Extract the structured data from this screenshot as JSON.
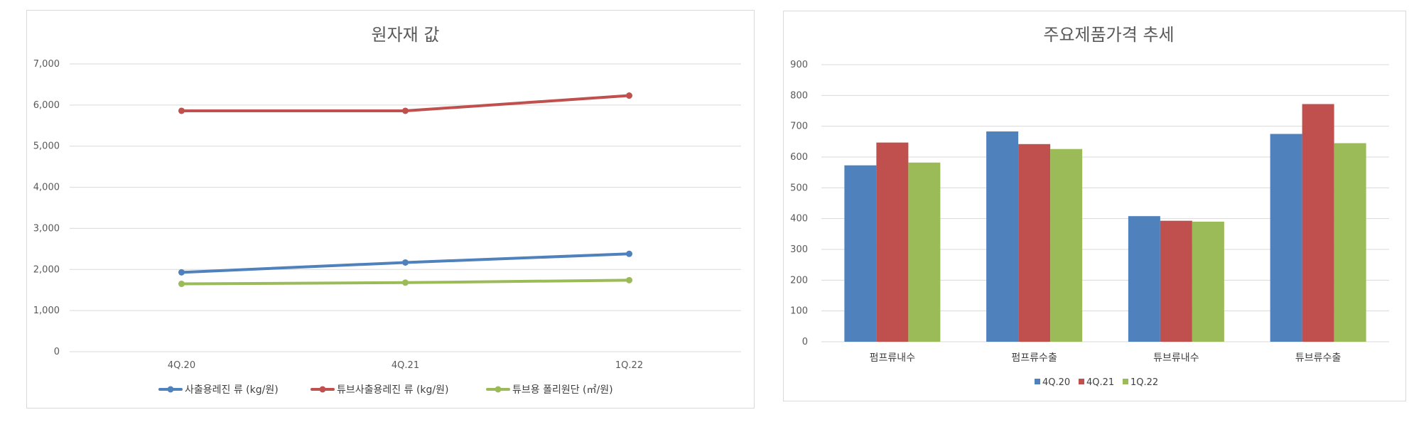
{
  "chart_data": [
    {
      "type": "line",
      "title": "원자재 값",
      "categories": [
        "4Q.20",
        "4Q.21",
        "1Q.22"
      ],
      "y_ticks": [
        "0",
        "1,000",
        "2,000",
        "3,000",
        "4,000",
        "5,000",
        "6,000",
        "7,000"
      ],
      "ylim": [
        0,
        7000
      ],
      "grid": true,
      "legend_position": "bottom",
      "series": [
        {
          "name": "사출용레진 류 (kg/원)",
          "color": "#4f81bd",
          "values": [
            1930,
            2170,
            2380
          ]
        },
        {
          "name": "튜브사출용레진 류 (kg/원)",
          "color": "#c0504d",
          "values": [
            5860,
            5860,
            6230
          ]
        },
        {
          "name": "튜브용 폴리원단 (㎡/원)",
          "color": "#9bbb59",
          "values": [
            1650,
            1680,
            1740
          ]
        }
      ]
    },
    {
      "type": "bar",
      "title": "주요제품가격 추세",
      "categories": [
        "펌프류내수",
        "펌프류수출",
        "튜브류내수",
        "튜브류수출"
      ],
      "y_ticks": [
        "0",
        "100",
        "200",
        "300",
        "400",
        "500",
        "600",
        "700",
        "800",
        "900"
      ],
      "ylim": [
        0,
        900
      ],
      "grid": true,
      "legend_position": "bottom",
      "series": [
        {
          "name": "4Q.20",
          "color": "#4f81bd",
          "values": [
            573,
            683,
            408,
            675
          ]
        },
        {
          "name": "4Q.21",
          "color": "#c0504d",
          "values": [
            647,
            642,
            393,
            772
          ]
        },
        {
          "name": "1Q.22",
          "color": "#9bbb59",
          "values": [
            582,
            626,
            390,
            645
          ]
        }
      ]
    }
  ]
}
